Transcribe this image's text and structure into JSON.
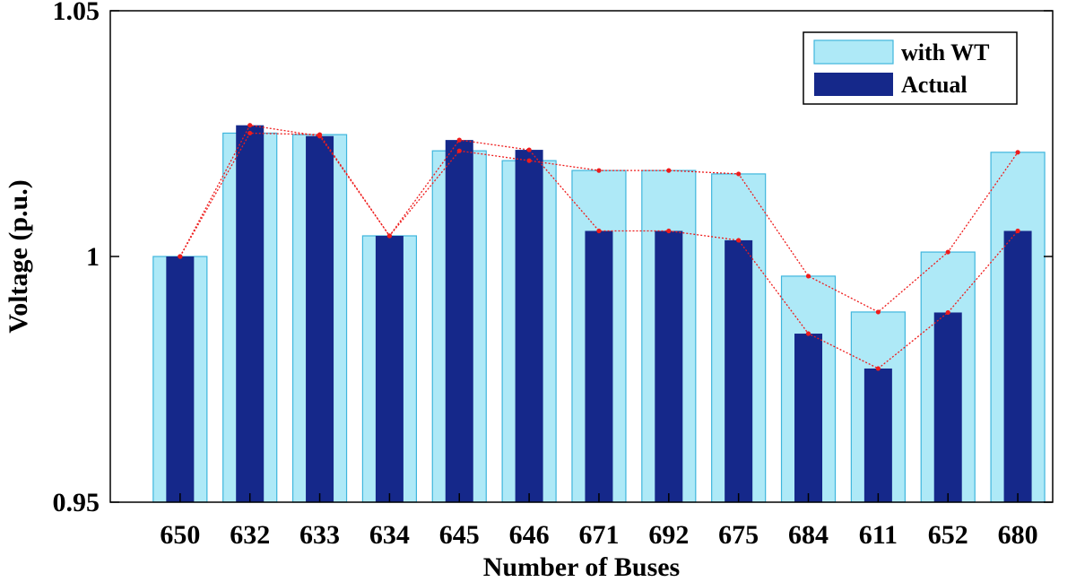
{
  "chart_data": {
    "type": "bar",
    "xlabel": "Number of Buses",
    "ylabel": "Voltage (p.u.)",
    "ylim": [
      0.95,
      1.05
    ],
    "y_ticks": [
      0.95,
      1,
      1.05
    ],
    "y_tick_labels": [
      "0.95",
      "1",
      "1.05"
    ],
    "categories": [
      "650",
      "632",
      "633",
      "634",
      "645",
      "646",
      "671",
      "692",
      "675",
      "684",
      "611",
      "652",
      "680"
    ],
    "series": [
      {
        "name": "with WT",
        "color": "#aee9f7",
        "edge_color": "#3fb6dd",
        "values": [
          1.0,
          1.0251,
          1.0248,
          1.0042,
          1.0215,
          1.0195,
          1.0175,
          1.0175,
          1.0168,
          0.996,
          0.9887,
          1.0009,
          1.0212
        ]
      },
      {
        "name": "Actual",
        "color": "#15288a",
        "values": [
          1.0,
          1.0267,
          1.0245,
          1.0042,
          1.0237,
          1.0217,
          1.0052,
          1.0052,
          1.0033,
          0.9843,
          0.9772,
          0.9886,
          1.0052
        ]
      }
    ],
    "marker_line_color": "#ee1c1c",
    "legend_position": "top-right",
    "grid": false
  }
}
